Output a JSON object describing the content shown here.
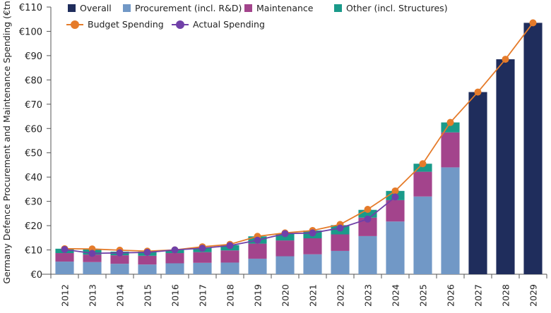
{
  "chart_data": {
    "type": "bar",
    "subtype": "stacked bar with line overlays",
    "title": "",
    "xlabel": "",
    "ylabel": "Germany Defence Procurement and Maintenance Spending (€tn)",
    "ylim": [
      0,
      110
    ],
    "yticks": [
      0,
      10,
      20,
      30,
      40,
      50,
      60,
      70,
      80,
      90,
      100,
      110
    ],
    "ytick_labels": [
      "€0",
      "€10",
      "€20",
      "€30",
      "€40",
      "€50",
      "€60",
      "€70",
      "€80",
      "€90",
      "€100",
      "€110"
    ],
    "grid": false,
    "legend_position": "top",
    "categories": [
      "2012",
      "2013",
      "2014",
      "2015",
      "2016",
      "2017",
      "2018",
      "2019",
      "2020",
      "2021",
      "2022",
      "2023",
      "2024",
      "2025",
      "2026",
      "2027",
      "2028",
      "2029"
    ],
    "series": [
      {
        "name": "Overall",
        "kind": "bar",
        "color": "#1f2d5c",
        "values": [
          null,
          null,
          null,
          null,
          null,
          null,
          null,
          null,
          null,
          null,
          null,
          null,
          null,
          null,
          null,
          75.0,
          88.5,
          103.5
        ]
      },
      {
        "name": "Procurement (incl. R&D)",
        "kind": "bar",
        "color": "#7198c6",
        "values": [
          5.2,
          5.0,
          4.3,
          4.0,
          4.5,
          4.7,
          4.8,
          6.4,
          7.4,
          8.2,
          9.6,
          15.7,
          21.7,
          32.0,
          44.0,
          null,
          null,
          null
        ]
      },
      {
        "name": "Maintenance",
        "kind": "bar",
        "color": "#a3448c",
        "values": [
          3.5,
          3.1,
          3.5,
          3.6,
          4.2,
          4.4,
          5.0,
          6.2,
          6.5,
          6.6,
          6.8,
          7.6,
          8.8,
          10.2,
          14.4,
          null,
          null,
          null
        ]
      },
      {
        "name": "Other (incl. Structures)",
        "kind": "bar",
        "color": "#1a9a8a",
        "values": [
          1.8,
          2.3,
          1.5,
          1.7,
          1.3,
          1.9,
          2.2,
          3.0,
          2.9,
          3.2,
          3.8,
          3.2,
          3.8,
          3.3,
          4.1,
          null,
          null,
          null
        ]
      },
      {
        "name": "Budget Spending",
        "kind": "line",
        "color": "#e57b2a",
        "values": [
          10.5,
          10.4,
          9.9,
          9.5,
          10.0,
          11.3,
          12.3,
          15.6,
          17.0,
          18.0,
          20.5,
          26.7,
          34.3,
          45.5,
          62.5,
          75.0,
          88.5,
          103.5
        ]
      },
      {
        "name": "Actual Spending",
        "kind": "line",
        "color": "#7040a8",
        "values": [
          10.2,
          8.6,
          8.8,
          9.0,
          10.0,
          10.7,
          11.8,
          14.0,
          16.7,
          17.0,
          19.0,
          22.7,
          31.8,
          null,
          null,
          null,
          null,
          null
        ]
      }
    ]
  },
  "legend": {
    "items": [
      {
        "label": "Overall",
        "color": "#1f2d5c"
      },
      {
        "label": "Procurement (incl. R&D)",
        "color": "#7198c6"
      },
      {
        "label": "Maintenance",
        "color": "#a3448c"
      },
      {
        "label": "Other (incl. Structures)",
        "color": "#1a9a8a"
      },
      {
        "label": "Budget Spending",
        "color": "#e57b2a"
      },
      {
        "label": "Actual Spending",
        "color": "#7040a8"
      }
    ]
  }
}
